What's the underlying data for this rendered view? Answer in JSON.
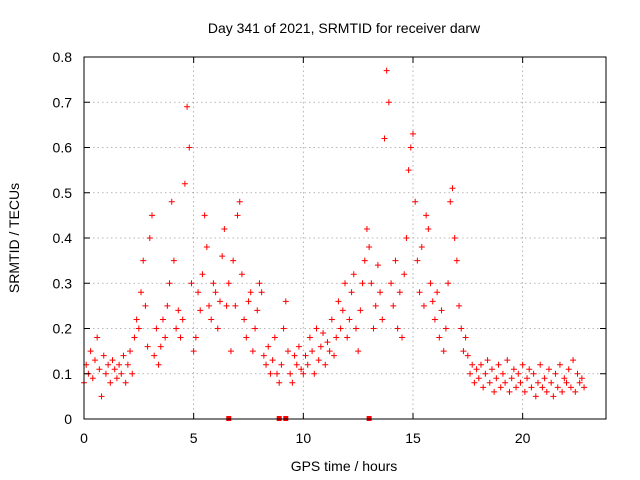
{
  "chart_data": {
    "type": "scatter",
    "title": "Day 341 of 2021, SRMTID for receiver darw",
    "xlabel": "GPS time / hours",
    "ylabel": "SRMTID / TECUs",
    "xlim": [
      0,
      23.8
    ],
    "ylim": [
      0,
      0.8
    ],
    "xticks": [
      0,
      5,
      10,
      15,
      20
    ],
    "xtick_labels": [
      "0",
      "5",
      "10",
      "15",
      "20"
    ],
    "yticks": [
      0,
      0.1,
      0.2,
      0.3,
      0.4,
      0.5,
      0.6,
      0.7,
      0.8
    ],
    "ytick_labels": [
      "0",
      "0.1",
      "0.2",
      "0.3",
      "0.4",
      "0.5",
      "0.6",
      "0.7",
      "0.8"
    ],
    "grid": true,
    "marker": "plus",
    "color": "#ff0000",
    "series": [
      {
        "name": "SRMTID",
        "points": [
          [
            0.0,
            0.08
          ],
          [
            0.1,
            0.12
          ],
          [
            0.2,
            0.1
          ],
          [
            0.3,
            0.15
          ],
          [
            0.4,
            0.09
          ],
          [
            0.5,
            0.13
          ],
          [
            0.6,
            0.18
          ],
          [
            0.7,
            0.11
          ],
          [
            0.8,
            0.05
          ],
          [
            0.9,
            0.14
          ],
          [
            1.0,
            0.1
          ],
          [
            1.1,
            0.12
          ],
          [
            1.2,
            0.08
          ],
          [
            1.3,
            0.13
          ],
          [
            1.4,
            0.11
          ],
          [
            1.5,
            0.09
          ],
          [
            1.6,
            0.12
          ],
          [
            1.7,
            0.1
          ],
          [
            1.8,
            0.14
          ],
          [
            1.9,
            0.08
          ],
          [
            2.0,
            0.12
          ],
          [
            2.1,
            0.15
          ],
          [
            2.2,
            0.1
          ],
          [
            2.3,
            0.18
          ],
          [
            2.4,
            0.22
          ],
          [
            2.5,
            0.2
          ],
          [
            2.6,
            0.28
          ],
          [
            2.7,
            0.35
          ],
          [
            2.8,
            0.25
          ],
          [
            2.9,
            0.16
          ],
          [
            3.0,
            0.4
          ],
          [
            3.1,
            0.45
          ],
          [
            3.2,
            0.14
          ],
          [
            3.3,
            0.2
          ],
          [
            3.4,
            0.12
          ],
          [
            3.5,
            0.16
          ],
          [
            3.6,
            0.22
          ],
          [
            3.7,
            0.18
          ],
          [
            3.8,
            0.25
          ],
          [
            3.9,
            0.3
          ],
          [
            4.0,
            0.48
          ],
          [
            4.1,
            0.35
          ],
          [
            4.2,
            0.2
          ],
          [
            4.3,
            0.24
          ],
          [
            4.4,
            0.18
          ],
          [
            4.5,
            0.22
          ],
          [
            4.6,
            0.52
          ],
          [
            4.7,
            0.69
          ],
          [
            4.8,
            0.6
          ],
          [
            4.9,
            0.3
          ],
          [
            5.0,
            0.15
          ],
          [
            5.1,
            0.18
          ],
          [
            5.2,
            0.28
          ],
          [
            5.3,
            0.24
          ],
          [
            5.4,
            0.32
          ],
          [
            5.5,
            0.45
          ],
          [
            5.6,
            0.38
          ],
          [
            5.7,
            0.25
          ],
          [
            5.8,
            0.22
          ],
          [
            5.9,
            0.3
          ],
          [
            6.0,
            0.28
          ],
          [
            6.1,
            0.2
          ],
          [
            6.2,
            0.26
          ],
          [
            6.3,
            0.36
          ],
          [
            6.4,
            0.42
          ],
          [
            6.5,
            0.25
          ],
          [
            6.6,
            0.3
          ],
          [
            6.7,
            0.15
          ],
          [
            6.8,
            0.35
          ],
          [
            6.9,
            0.25
          ],
          [
            7.0,
            0.45
          ],
          [
            7.1,
            0.48
          ],
          [
            7.2,
            0.32
          ],
          [
            7.3,
            0.22
          ],
          [
            7.4,
            0.18
          ],
          [
            7.5,
            0.26
          ],
          [
            7.6,
            0.28
          ],
          [
            7.7,
            0.15
          ],
          [
            7.8,
            0.2
          ],
          [
            7.9,
            0.24
          ],
          [
            8.0,
            0.3
          ],
          [
            8.1,
            0.28
          ],
          [
            8.2,
            0.14
          ],
          [
            8.3,
            0.12
          ],
          [
            8.4,
            0.16
          ],
          [
            8.5,
            0.1
          ],
          [
            8.6,
            0.13
          ],
          [
            8.7,
            0.18
          ],
          [
            8.8,
            0.1
          ],
          [
            8.9,
            0.08
          ],
          [
            9.0,
            0.12
          ],
          [
            9.1,
            0.2
          ],
          [
            9.2,
            0.26
          ],
          [
            9.3,
            0.15
          ],
          [
            9.4,
            0.1
          ],
          [
            9.5,
            0.08
          ],
          [
            9.6,
            0.14
          ],
          [
            9.7,
            0.12
          ],
          [
            9.8,
            0.16
          ],
          [
            9.9,
            0.11
          ],
          [
            10.0,
            0.1
          ],
          [
            10.1,
            0.14
          ],
          [
            10.2,
            0.12
          ],
          [
            10.3,
            0.18
          ],
          [
            10.4,
            0.15
          ],
          [
            10.5,
            0.1
          ],
          [
            10.6,
            0.2
          ],
          [
            10.7,
            0.13
          ],
          [
            10.8,
            0.16
          ],
          [
            10.9,
            0.19
          ],
          [
            11.0,
            0.12
          ],
          [
            11.1,
            0.17
          ],
          [
            11.2,
            0.15
          ],
          [
            11.3,
            0.22
          ],
          [
            11.4,
            0.14
          ],
          [
            11.5,
            0.18
          ],
          [
            11.6,
            0.26
          ],
          [
            11.7,
            0.2
          ],
          [
            11.8,
            0.24
          ],
          [
            11.9,
            0.3
          ],
          [
            12.0,
            0.18
          ],
          [
            12.1,
            0.22
          ],
          [
            12.2,
            0.28
          ],
          [
            12.3,
            0.32
          ],
          [
            12.4,
            0.2
          ],
          [
            12.5,
            0.15
          ],
          [
            12.6,
            0.24
          ],
          [
            12.7,
            0.3
          ],
          [
            12.8,
            0.35
          ],
          [
            12.9,
            0.42
          ],
          [
            13.0,
            0.38
          ],
          [
            13.1,
            0.3
          ],
          [
            13.2,
            0.2
          ],
          [
            13.3,
            0.25
          ],
          [
            13.4,
            0.34
          ],
          [
            13.5,
            0.28
          ],
          [
            13.6,
            0.22
          ],
          [
            13.7,
            0.62
          ],
          [
            13.8,
            0.77
          ],
          [
            13.9,
            0.7
          ],
          [
            14.0,
            0.3
          ],
          [
            14.1,
            0.25
          ],
          [
            14.2,
            0.35
          ],
          [
            14.3,
            0.2
          ],
          [
            14.4,
            0.28
          ],
          [
            14.5,
            0.18
          ],
          [
            14.6,
            0.32
          ],
          [
            14.7,
            0.4
          ],
          [
            14.8,
            0.55
          ],
          [
            14.9,
            0.6
          ],
          [
            15.0,
            0.63
          ],
          [
            15.1,
            0.48
          ],
          [
            15.2,
            0.35
          ],
          [
            15.3,
            0.28
          ],
          [
            15.4,
            0.38
          ],
          [
            15.5,
            0.25
          ],
          [
            15.6,
            0.45
          ],
          [
            15.7,
            0.42
          ],
          [
            15.8,
            0.3
          ],
          [
            15.9,
            0.26
          ],
          [
            16.0,
            0.22
          ],
          [
            16.1,
            0.28
          ],
          [
            16.2,
            0.18
          ],
          [
            16.3,
            0.24
          ],
          [
            16.4,
            0.15
          ],
          [
            16.5,
            0.2
          ],
          [
            16.6,
            0.3
          ],
          [
            16.7,
            0.48
          ],
          [
            16.8,
            0.51
          ],
          [
            16.9,
            0.4
          ],
          [
            17.0,
            0.35
          ],
          [
            17.1,
            0.25
          ],
          [
            17.2,
            0.2
          ],
          [
            17.3,
            0.15
          ],
          [
            17.4,
            0.18
          ],
          [
            17.5,
            0.14
          ],
          [
            17.6,
            0.1
          ],
          [
            17.7,
            0.12
          ],
          [
            17.8,
            0.08
          ],
          [
            17.9,
            0.11
          ],
          [
            18.0,
            0.09
          ],
          [
            18.1,
            0.12
          ],
          [
            18.2,
            0.07
          ],
          [
            18.3,
            0.1
          ],
          [
            18.4,
            0.13
          ],
          [
            18.5,
            0.08
          ],
          [
            18.6,
            0.11
          ],
          [
            18.7,
            0.06
          ],
          [
            18.8,
            0.09
          ],
          [
            18.9,
            0.12
          ],
          [
            19.0,
            0.07
          ],
          [
            19.1,
            0.1
          ],
          [
            19.2,
            0.08
          ],
          [
            19.3,
            0.13
          ],
          [
            19.4,
            0.06
          ],
          [
            19.5,
            0.09
          ],
          [
            19.6,
            0.11
          ],
          [
            19.7,
            0.07
          ],
          [
            19.8,
            0.1
          ],
          [
            19.9,
            0.08
          ],
          [
            20.0,
            0.12
          ],
          [
            20.1,
            0.06
          ],
          [
            20.2,
            0.09
          ],
          [
            20.3,
            0.11
          ],
          [
            20.4,
            0.07
          ],
          [
            20.5,
            0.1
          ],
          [
            20.6,
            0.05
          ],
          [
            20.7,
            0.08
          ],
          [
            20.8,
            0.12
          ],
          [
            20.9,
            0.07
          ],
          [
            21.0,
            0.09
          ],
          [
            21.1,
            0.06
          ],
          [
            21.2,
            0.11
          ],
          [
            21.3,
            0.08
          ],
          [
            21.4,
            0.05
          ],
          [
            21.5,
            0.1
          ],
          [
            21.6,
            0.07
          ],
          [
            21.7,
            0.12
          ],
          [
            21.8,
            0.06
          ],
          [
            21.9,
            0.09
          ],
          [
            22.0,
            0.08
          ],
          [
            22.1,
            0.11
          ],
          [
            22.2,
            0.07
          ],
          [
            22.3,
            0.13
          ],
          [
            22.4,
            0.06
          ],
          [
            22.5,
            0.1
          ],
          [
            22.6,
            0.08
          ],
          [
            22.7,
            0.09
          ],
          [
            22.8,
            0.07
          ]
        ]
      }
    ],
    "out_of_range_marks": [
      6.6,
      8.9,
      9.2,
      13.0
    ]
  }
}
